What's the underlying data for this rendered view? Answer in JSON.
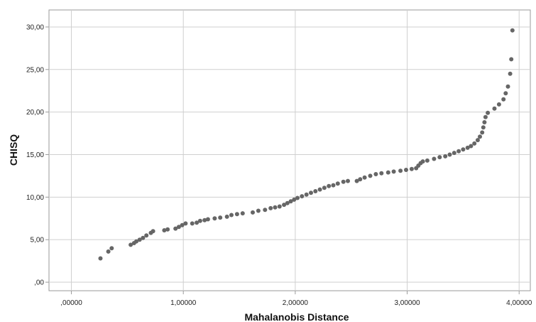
{
  "chart_data": {
    "type": "scatter",
    "title": "",
    "xlabel": "Mahalanobis Distance",
    "ylabel": "CHISQ",
    "xlim": [
      -0.2,
      4.1
    ],
    "ylim": [
      -1.0,
      32.0
    ],
    "x_ticks": [
      0,
      1,
      2,
      3,
      4
    ],
    "x_tick_labels": [
      ",00000",
      "1,00000",
      "2,00000",
      "3,00000",
      "4,00000"
    ],
    "y_ticks": [
      0,
      5,
      10,
      15,
      20,
      25,
      30
    ],
    "y_tick_labels": [
      ",00",
      "5,00",
      "10,00",
      "15,00",
      "20,00",
      "25,00",
      "30,00"
    ],
    "grid": true,
    "legend": "none",
    "colors": {
      "point": "#666666",
      "grid": "#cfcfcf",
      "axis": "#9a9a9a"
    },
    "points": [
      [
        0.26,
        2.8
      ],
      [
        0.33,
        3.6
      ],
      [
        0.36,
        4.0
      ],
      [
        0.53,
        4.4
      ],
      [
        0.56,
        4.6
      ],
      [
        0.58,
        4.8
      ],
      [
        0.61,
        5.0
      ],
      [
        0.64,
        5.2
      ],
      [
        0.67,
        5.5
      ],
      [
        0.71,
        5.8
      ],
      [
        0.73,
        6.0
      ],
      [
        0.83,
        6.1
      ],
      [
        0.86,
        6.2
      ],
      [
        0.93,
        6.3
      ],
      [
        0.96,
        6.5
      ],
      [
        0.99,
        6.7
      ],
      [
        1.02,
        6.9
      ],
      [
        1.08,
        6.9
      ],
      [
        1.12,
        7.0
      ],
      [
        1.15,
        7.2
      ],
      [
        1.19,
        7.3
      ],
      [
        1.22,
        7.4
      ],
      [
        1.28,
        7.5
      ],
      [
        1.33,
        7.6
      ],
      [
        1.39,
        7.7
      ],
      [
        1.43,
        7.9
      ],
      [
        1.48,
        8.0
      ],
      [
        1.53,
        8.1
      ],
      [
        1.62,
        8.2
      ],
      [
        1.67,
        8.4
      ],
      [
        1.73,
        8.5
      ],
      [
        1.78,
        8.7
      ],
      [
        1.82,
        8.8
      ],
      [
        1.86,
        8.9
      ],
      [
        1.9,
        9.1
      ],
      [
        1.93,
        9.3
      ],
      [
        1.96,
        9.5
      ],
      [
        1.99,
        9.7
      ],
      [
        2.02,
        9.9
      ],
      [
        2.06,
        10.1
      ],
      [
        2.1,
        10.3
      ],
      [
        2.14,
        10.5
      ],
      [
        2.18,
        10.7
      ],
      [
        2.22,
        10.9
      ],
      [
        2.26,
        11.1
      ],
      [
        2.3,
        11.3
      ],
      [
        2.34,
        11.4
      ],
      [
        2.38,
        11.6
      ],
      [
        2.43,
        11.8
      ],
      [
        2.47,
        11.9
      ],
      [
        2.55,
        11.9
      ],
      [
        2.58,
        12.1
      ],
      [
        2.62,
        12.3
      ],
      [
        2.67,
        12.5
      ],
      [
        2.72,
        12.7
      ],
      [
        2.77,
        12.8
      ],
      [
        2.83,
        12.9
      ],
      [
        2.88,
        13.0
      ],
      [
        2.94,
        13.1
      ],
      [
        2.99,
        13.2
      ],
      [
        3.04,
        13.3
      ],
      [
        3.08,
        13.4
      ],
      [
        3.1,
        13.7
      ],
      [
        3.12,
        14.0
      ],
      [
        3.14,
        14.2
      ],
      [
        3.18,
        14.3
      ],
      [
        3.24,
        14.5
      ],
      [
        3.29,
        14.7
      ],
      [
        3.34,
        14.8
      ],
      [
        3.38,
        15.0
      ],
      [
        3.42,
        15.2
      ],
      [
        3.46,
        15.4
      ],
      [
        3.5,
        15.6
      ],
      [
        3.54,
        15.8
      ],
      [
        3.57,
        16.0
      ],
      [
        3.6,
        16.3
      ],
      [
        3.63,
        16.7
      ],
      [
        3.65,
        17.1
      ],
      [
        3.67,
        17.6
      ],
      [
        3.68,
        18.2
      ],
      [
        3.69,
        18.8
      ],
      [
        3.7,
        19.4
      ],
      [
        3.72,
        19.9
      ],
      [
        3.78,
        20.4
      ],
      [
        3.82,
        20.9
      ],
      [
        3.86,
        21.5
      ],
      [
        3.88,
        22.2
      ],
      [
        3.9,
        23.0
      ],
      [
        3.92,
        24.5
      ],
      [
        3.93,
        26.2
      ],
      [
        3.94,
        29.6
      ]
    ]
  }
}
